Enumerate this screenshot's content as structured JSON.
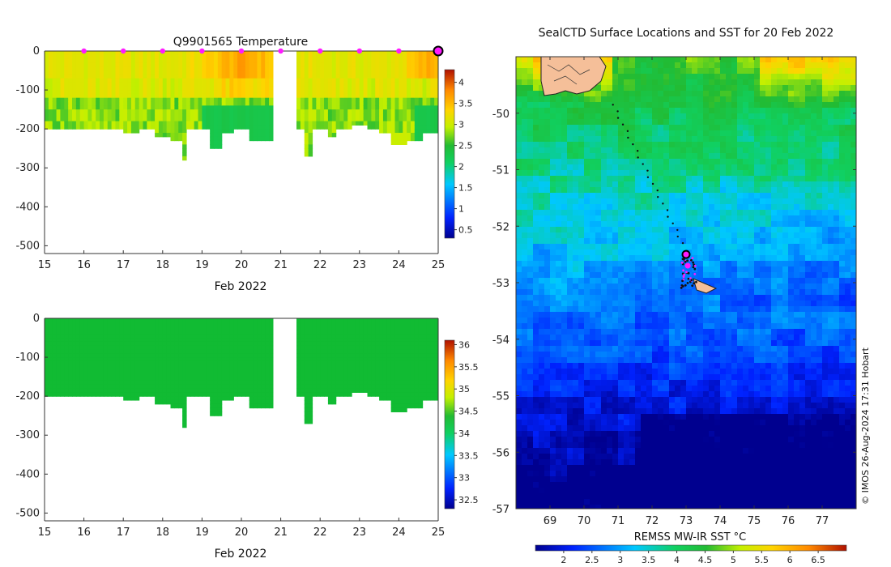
{
  "chart_data": [
    {
      "type": "heatmap",
      "name": "temperature-profile",
      "title": "Q9901565  Temperature",
      "xlabel": "Feb 2022",
      "ylabel": "",
      "xlim": [
        15,
        25
      ],
      "ylim": [
        -520,
        0
      ],
      "xticks": [
        15,
        16,
        17,
        18,
        19,
        20,
        21,
        22,
        23,
        24,
        25
      ],
      "yticks": [
        0,
        -100,
        -200,
        -300,
        -400,
        -500
      ],
      "colorbar": {
        "min": 0.3,
        "max": 4.3,
        "ticks": [
          0.5,
          1,
          1.5,
          2,
          2.5,
          3,
          3.5,
          4
        ]
      },
      "surface_markers_x": [
        16,
        17,
        18,
        19,
        20,
        21,
        22,
        23,
        24
      ],
      "current_marker_x": 25,
      "gap": [
        20.85,
        21.35
      ],
      "profile_bottoms": [
        [
          15.0,
          -200
        ],
        [
          15.5,
          -200
        ],
        [
          16.0,
          -200
        ],
        [
          16.5,
          -200
        ],
        [
          17.0,
          -205
        ],
        [
          17.4,
          -200
        ],
        [
          17.8,
          -220
        ],
        [
          18.2,
          -225
        ],
        [
          18.45,
          -275
        ],
        [
          18.6,
          -200
        ],
        [
          18.9,
          -195
        ],
        [
          19.2,
          -250
        ],
        [
          19.5,
          -205
        ],
        [
          19.8,
          -200
        ],
        [
          20.2,
          -225
        ],
        [
          21.4,
          -200
        ],
        [
          21.55,
          -270
        ],
        [
          21.8,
          -200
        ],
        [
          22.2,
          -220
        ],
        [
          22.4,
          -200
        ],
        [
          22.8,
          -190
        ],
        [
          23.2,
          -195
        ],
        [
          23.5,
          -210
        ],
        [
          23.8,
          -240
        ],
        [
          24.2,
          -225
        ],
        [
          24.6,
          -210
        ],
        [
          25.0,
          -205
        ]
      ]
    },
    {
      "type": "heatmap",
      "name": "salinity-profile",
      "title": "",
      "xlabel": "Feb 2022",
      "ylabel": "",
      "xlim": [
        15,
        25
      ],
      "ylim": [
        -520,
        0
      ],
      "xticks": [
        15,
        16,
        17,
        18,
        19,
        20,
        21,
        22,
        23,
        24,
        25
      ],
      "yticks": [
        0,
        -100,
        -200,
        -300,
        -400,
        -500
      ],
      "colorbar": {
        "min": 32.3,
        "max": 36.1,
        "ticks": [
          32.5,
          33,
          33.5,
          34,
          34.5,
          35,
          35.5,
          36
        ]
      },
      "gap": [
        20.85,
        21.35
      ]
    },
    {
      "type": "heatmap",
      "name": "sst-map",
      "title": "SealCTD Surface Locations and SST for 20 Feb 2022",
      "xlabel": "REMSS MW-IR SST °C",
      "ylabel": "",
      "xlim": [
        68,
        78
      ],
      "ylim": [
        -57,
        -49
      ]
    }
  ],
  "sst_map": {
    "colorbar_ticks": [
      "2",
      "2.5",
      "3",
      "3.5",
      "4",
      "4.5",
      "5",
      "5.5",
      "6",
      "6.5"
    ],
    "credit": "© IMOS 26-Aug-2024 17:31 Hobart",
    "x_tick_labels": [
      "69",
      "70",
      "71",
      "72",
      "73",
      "74",
      "75",
      "76",
      "77"
    ],
    "y_tick_labels": [
      "-50",
      "-51",
      "-52",
      "-53",
      "-54",
      "-55",
      "-56",
      "-57"
    ]
  },
  "labels": {
    "temp_title": "Q9901565  Temperature",
    "temp_xlabel": "Feb 2022",
    "sal_xlabel": "Feb 2022",
    "map_title": "SealCTD Surface Locations and SST for 20 Feb 2022",
    "map_xlabel": "REMSS MW-IR SST °C"
  },
  "colors": {
    "surface_marker": "#ff1aff",
    "track_dots": "#111111",
    "land_fill": "#f5bf99",
    "salinity_fill": "#11bb33"
  }
}
